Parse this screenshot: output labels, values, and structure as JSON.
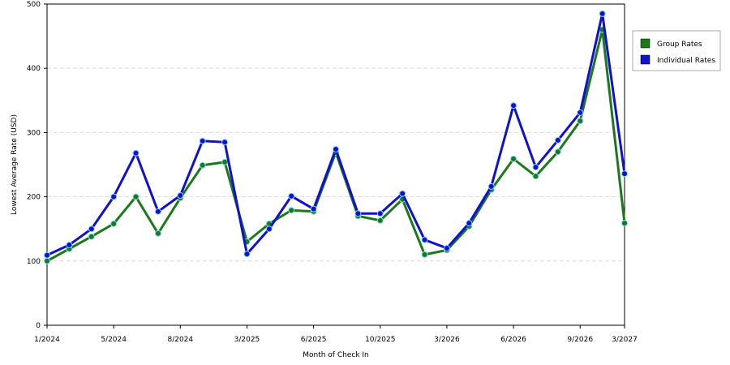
{
  "chart_data": {
    "type": "line",
    "x_label": "Month of Check In",
    "y_label": "Lowest Average Rate (USD)",
    "categories": [
      "1/2024",
      null,
      null,
      "5/2024",
      null,
      null,
      "8/2024",
      null,
      null,
      "3/2025",
      null,
      null,
      "6/2025",
      null,
      null,
      "10/2025",
      null,
      null,
      "3/2026",
      null,
      null,
      "6/2026",
      null,
      null,
      "9/2026",
      null,
      "3/2027"
    ],
    "series": [
      {
        "name": "Group Rates",
        "color": "#1a7a1a",
        "values": [
          100,
          119,
          138,
          158,
          200,
          143,
          198,
          249,
          254,
          130,
          158,
          179,
          177,
          269,
          170,
          163,
          196,
          110,
          117,
          154,
          211,
          259,
          232,
          270,
          318,
          460,
          159
        ]
      },
      {
        "name": "Individual Rates",
        "color": "#1010d0",
        "values": [
          109,
          125,
          150,
          200,
          268,
          177,
          202,
          287,
          285,
          111,
          150,
          201,
          181,
          274,
          174,
          174,
          205,
          133,
          120,
          159,
          216,
          342,
          246,
          288,
          331,
          485,
          236
        ]
      }
    ],
    "ylim": [
      0,
      500
    ],
    "yticks": [
      0,
      100,
      200,
      300,
      400,
      500
    ],
    "grid": true,
    "legend": "right"
  }
}
